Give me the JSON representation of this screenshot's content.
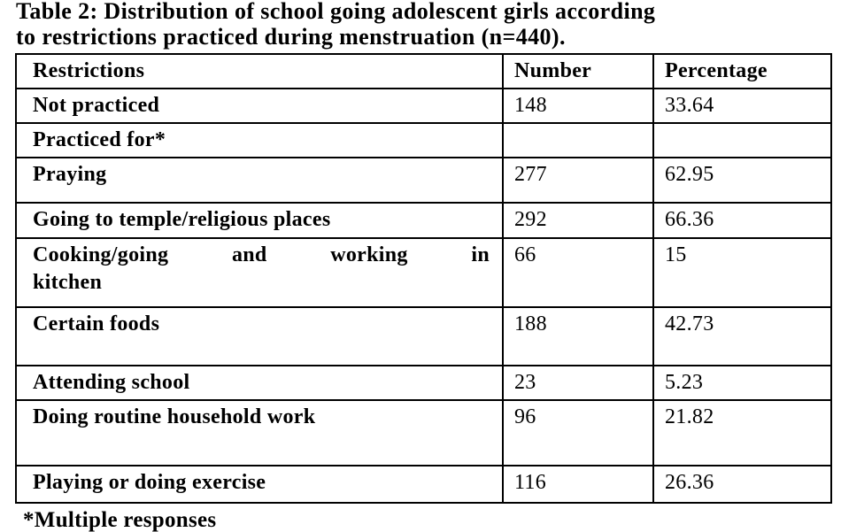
{
  "title": {
    "line1": "Table 2: Distribution of school going adolescent girls according",
    "line2": "to restrictions practiced during menstruation (n=440)."
  },
  "table": {
    "headers": [
      "Restrictions",
      "Number",
      "Percentage"
    ],
    "rows": [
      {
        "restriction": "Not practiced",
        "number": "148",
        "percentage": "33.64"
      },
      {
        "restriction": "Practiced for*",
        "number": "",
        "percentage": ""
      },
      {
        "restriction": "Praying",
        "number": "277",
        "percentage": "62.95"
      },
      {
        "restriction": "Going to temple/religious places",
        "number": "292",
        "percentage": "66.36"
      },
      {
        "restriction": "Cooking/going and working in kitchen",
        "number": "66",
        "percentage": "15"
      },
      {
        "restriction": "Certain foods",
        "number": "188",
        "percentage": "42.73"
      },
      {
        "restriction": "Attending school",
        "number": "23",
        "percentage": "5.23"
      },
      {
        "restriction": "Doing routine household work",
        "number": "96",
        "percentage": "21.82"
      },
      {
        "restriction": "Playing or doing exercise",
        "number": "116",
        "percentage": "26.36"
      }
    ]
  },
  "footnote": "*Multiple responses"
}
